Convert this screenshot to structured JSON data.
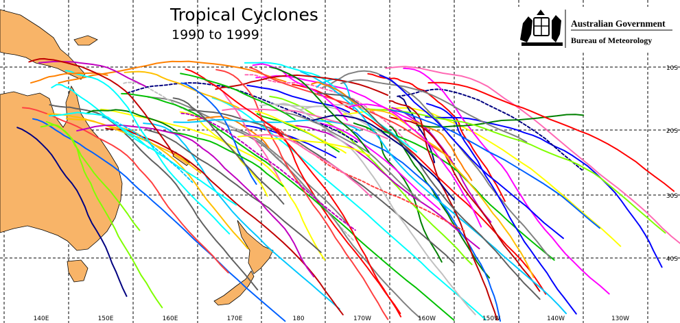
{
  "header": {
    "title": "Tropical Cyclones",
    "subtitle": "1990 to 1999"
  },
  "logo": {
    "line1": "Australian Government",
    "line2": "Bureau of Meteorology"
  },
  "map": {
    "latitude_labels": [
      "10S",
      "20S",
      "30S",
      "40S"
    ],
    "longitude_labels": [
      "140E",
      "150E",
      "160E",
      "170E",
      "180",
      "170W",
      "160W",
      "150W",
      "140W",
      "130W"
    ]
  }
}
